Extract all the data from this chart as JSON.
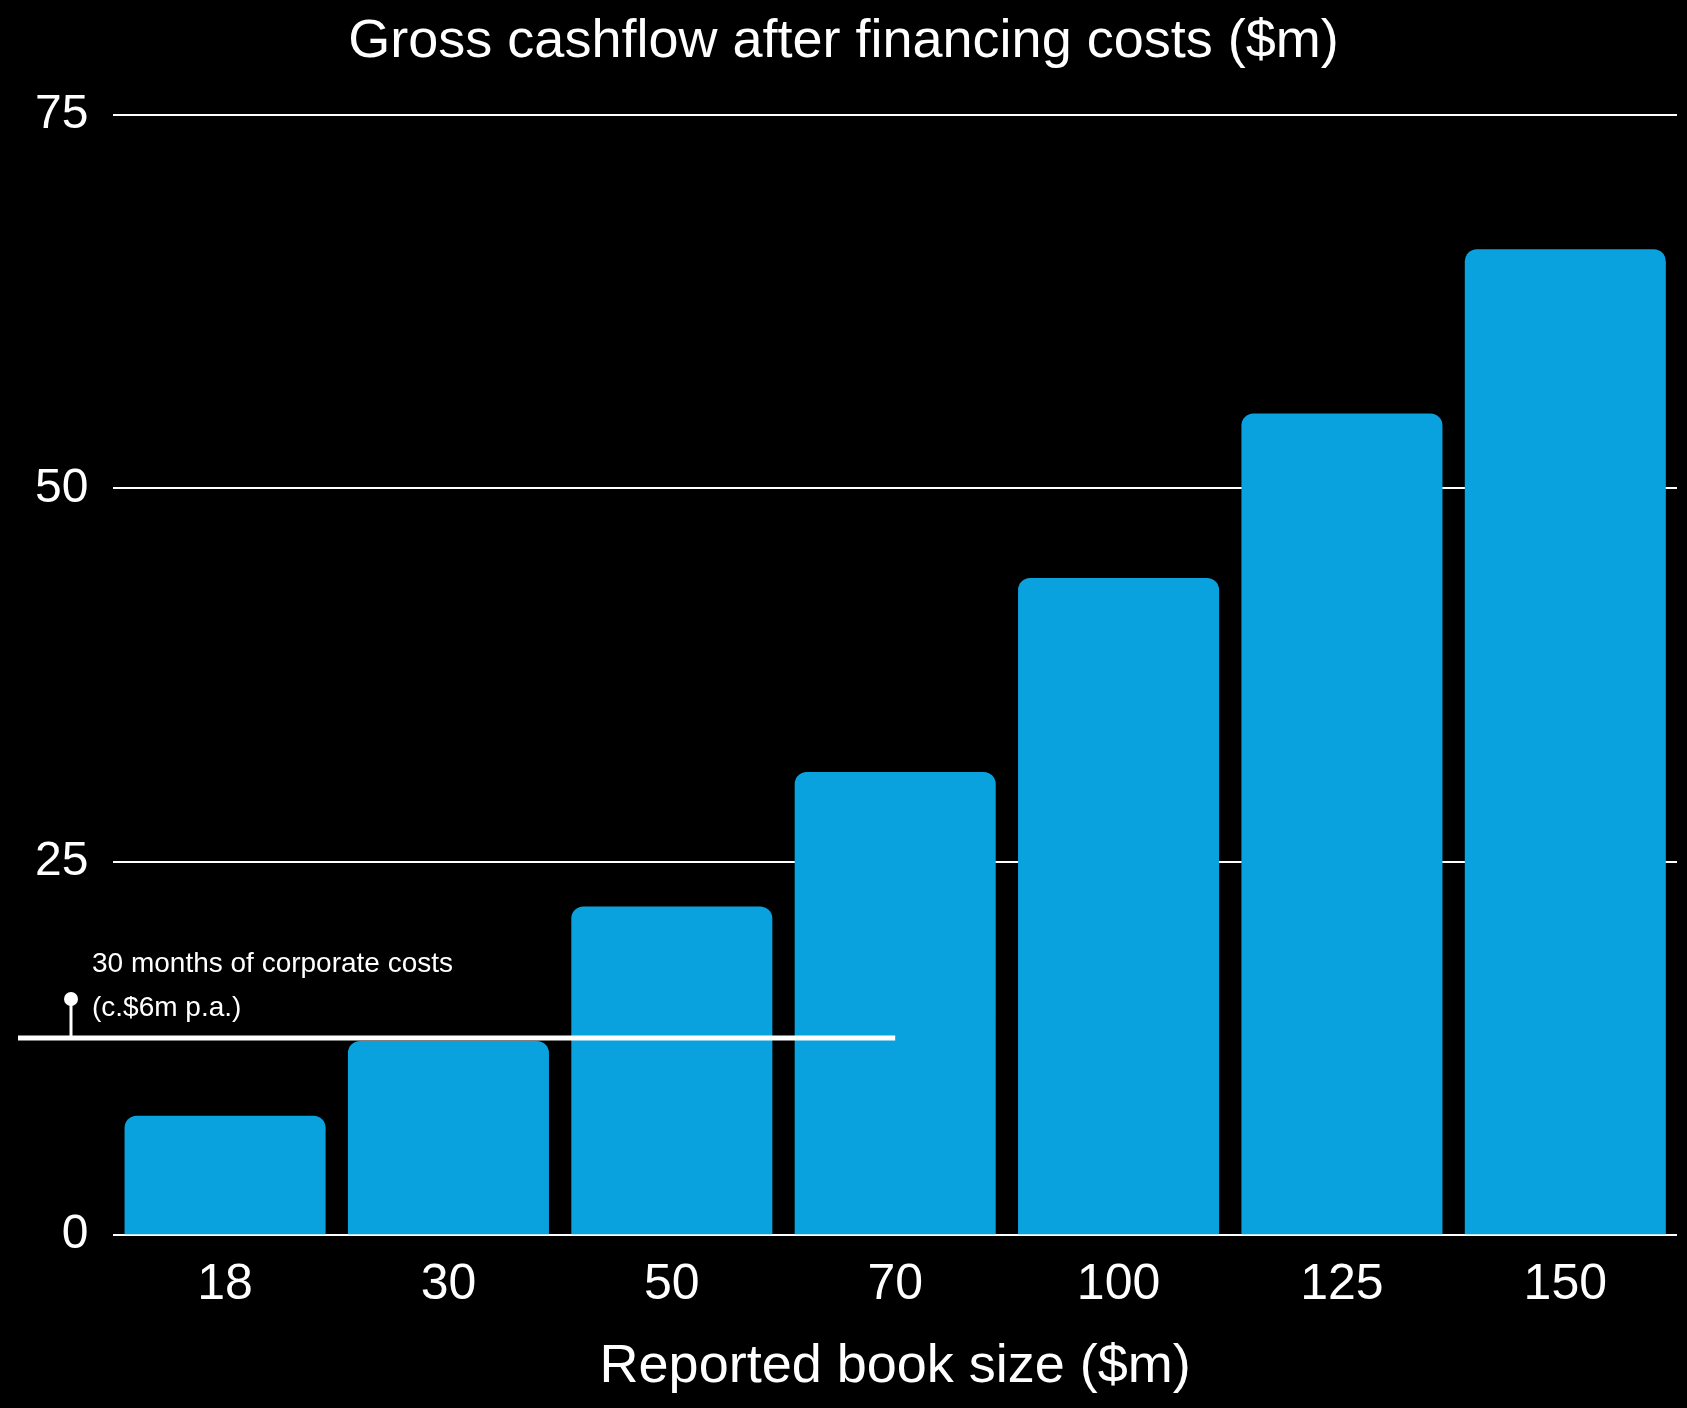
{
  "chart_data": {
    "type": "bar",
    "title": "Gross cashflow after financing costs ($m)",
    "xlabel": "Reported book size ($m)",
    "categories": [
      "18",
      "30",
      "50",
      "70",
      "100",
      "125",
      "150"
    ],
    "values": [
      8,
      13,
      22,
      31,
      44,
      55,
      66
    ],
    "color": "#0aa2de",
    "ylim": [
      0,
      75
    ],
    "yticks": [
      0,
      25,
      50,
      75
    ],
    "grid": "y",
    "ref_lines": [
      {
        "axis": "y",
        "value": 13.2,
        "label": "30 months of corporate costs\n(c.$6m p.a.)",
        "color": "#ffffff"
      }
    ]
  }
}
